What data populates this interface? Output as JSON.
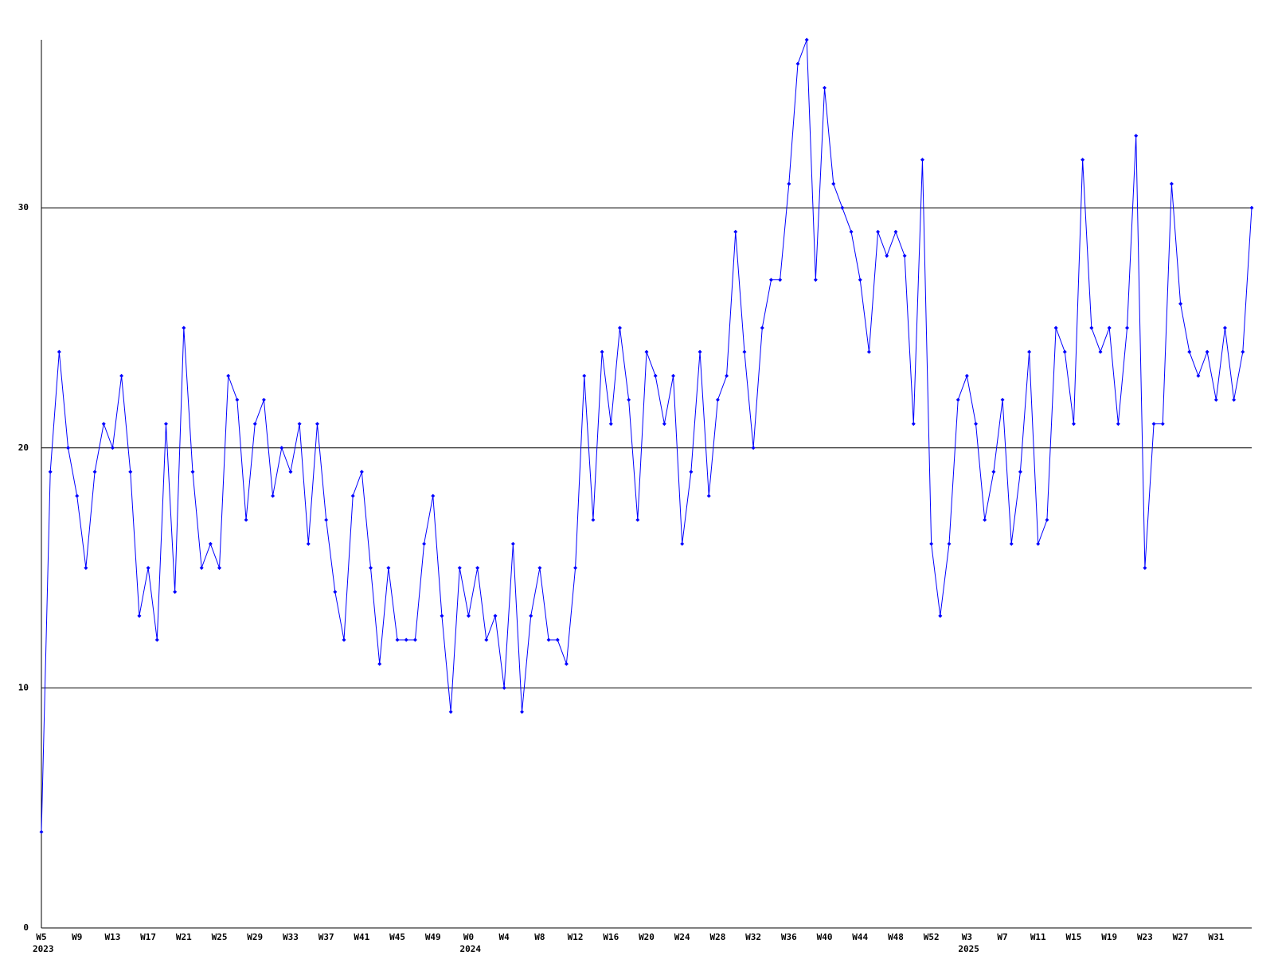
{
  "chart_data": {
    "type": "line",
    "color": "#0000ff",
    "grid": true,
    "ylim": [
      0,
      37
    ],
    "yticks": [
      0,
      10,
      20,
      30
    ],
    "categories": [
      "W5",
      null,
      null,
      null,
      "W9",
      null,
      null,
      null,
      "W13",
      null,
      null,
      null,
      "W17",
      null,
      null,
      null,
      "W21",
      null,
      null,
      null,
      "W25",
      null,
      null,
      null,
      "W29",
      null,
      null,
      null,
      "W33",
      null,
      null,
      null,
      "W37",
      null,
      null,
      null,
      "W41",
      null,
      null,
      null,
      "W45",
      null,
      null,
      null,
      "W49",
      null,
      null,
      null,
      "W0",
      null,
      null,
      null,
      "W4",
      null,
      null,
      null,
      "W8",
      null,
      null,
      null,
      "W12",
      null,
      null,
      null,
      "W16",
      null,
      null,
      null,
      "W20",
      null,
      null,
      null,
      "W24",
      null,
      null,
      null,
      "W28",
      null,
      null,
      null,
      "W32",
      null,
      null,
      null,
      "W36",
      null,
      null,
      null,
      "W40",
      null,
      null,
      null,
      "W44",
      null,
      null,
      null,
      "W48",
      null,
      null,
      null,
      "W52",
      null,
      null,
      null,
      "W3",
      null,
      null,
      null,
      "W7",
      null,
      null,
      null,
      "W11",
      null,
      null,
      null,
      "W15",
      null,
      null,
      null,
      "W19",
      null,
      null,
      null,
      "W23",
      null,
      null,
      null,
      "W27",
      null,
      null,
      null,
      "W31",
      null,
      null,
      null,
      null
    ],
    "years": [
      "2023",
      null,
      null,
      null,
      null,
      null,
      null,
      null,
      null,
      null,
      null,
      null,
      null,
      null,
      null,
      null,
      null,
      null,
      null,
      null,
      null,
      null,
      null,
      null,
      null,
      null,
      null,
      null,
      null,
      null,
      null,
      null,
      null,
      null,
      null,
      null,
      null,
      null,
      null,
      null,
      null,
      null,
      null,
      null,
      null,
      null,
      null,
      null,
      "2024",
      null,
      null,
      null,
      null,
      null,
      null,
      null,
      null,
      null,
      null,
      null,
      null,
      null,
      null,
      null,
      null,
      null,
      null,
      null,
      null,
      null,
      null,
      null,
      null,
      null,
      null,
      null,
      null,
      null,
      null,
      null,
      null,
      null,
      null,
      null,
      null,
      null,
      null,
      null,
      null,
      null,
      null,
      null,
      null,
      null,
      null,
      null,
      null,
      null,
      null,
      null,
      null,
      null,
      null,
      null,
      "2025",
      null,
      null,
      null,
      null,
      null,
      null,
      null,
      null,
      null,
      null,
      null,
      null,
      null,
      null,
      null,
      null,
      null,
      null,
      null,
      null,
      null,
      null,
      null,
      null,
      null,
      null,
      null,
      null,
      null,
      null,
      null,
      null
    ],
    "values": [
      4,
      19,
      24,
      20,
      18,
      15,
      19,
      21,
      20,
      23,
      19,
      13,
      15,
      12,
      21,
      14,
      25,
      19,
      15,
      16,
      15,
      23,
      22,
      17,
      21,
      22,
      18,
      20,
      19,
      21,
      16,
      21,
      17,
      14,
      12,
      18,
      19,
      15,
      11,
      15,
      12,
      12,
      12,
      16,
      18,
      13,
      9,
      15,
      13,
      15,
      12,
      13,
      10,
      16,
      9,
      13,
      15,
      12,
      12,
      11,
      15,
      23,
      17,
      24,
      21,
      25,
      22,
      17,
      24,
      23,
      21,
      23,
      16,
      19,
      24,
      18,
      22,
      23,
      29,
      24,
      20,
      25,
      27,
      27,
      31,
      36,
      37,
      27,
      35,
      31,
      30,
      29,
      27,
      24,
      29,
      28,
      29,
      28,
      21,
      32,
      16,
      13,
      16,
      22,
      23,
      21,
      17,
      19,
      22,
      16,
      19,
      24,
      16,
      17,
      25,
      24,
      21,
      32,
      25,
      24,
      25,
      21,
      25,
      33,
      15,
      21,
      21,
      31,
      26,
      24,
      23,
      24,
      22,
      25,
      22,
      24,
      30
    ]
  }
}
